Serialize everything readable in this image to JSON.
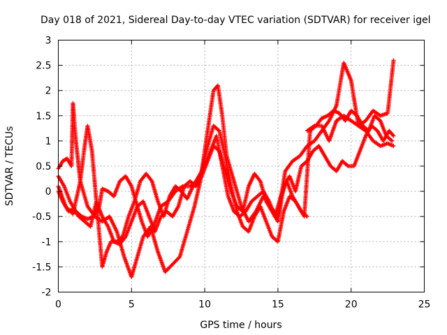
{
  "chart_data": {
    "type": "scatter",
    "title": "Day 018 of 2021, Sidereal Day-to-day VTEC variation (SDTVAR) for receiver igel",
    "xlabel": "GPS time / hours",
    "ylabel": "SDTVAR / TECUs",
    "xlim": [
      0,
      25
    ],
    "ylim": [
      -2,
      3
    ],
    "xticks": [
      0,
      5,
      10,
      15,
      20,
      25
    ],
    "yticks": [
      -2,
      -1.5,
      -1,
      -0.5,
      0,
      0.5,
      1,
      1.5,
      2,
      2.5,
      3
    ],
    "grid": true,
    "marker": "+",
    "series": [
      {
        "name": "SDTVAR",
        "color": "#ff0000",
        "traces": [
          {
            "x": [
              0,
              0.3,
              0.6,
              0.9,
              1.0,
              1.2,
              1.5,
              2.0,
              2.5,
              3.0,
              3.5,
              4.0,
              4.5,
              5.0,
              5.3,
              5.8,
              6.3,
              6.8,
              7.3,
              7.8,
              8.3,
              8.8,
              9.3,
              9.7,
              10.0,
              10.3,
              10.6,
              10.9,
              11.2,
              11.5,
              12.0,
              12.5,
              13.0,
              13.5,
              14.0,
              14.5,
              15.0,
              15.5,
              16.0,
              16.5,
              17.0,
              17.5,
              18.0,
              18.5,
              19.0,
              19.5,
              20.0,
              20.5,
              21.0,
              21.5,
              22.0,
              22.5,
              22.9
            ],
            "y": [
              0.45,
              0.6,
              0.65,
              0.5,
              1.75,
              1.0,
              0.2,
              -0.3,
              -0.5,
              -0.6,
              -0.5,
              -0.8,
              -1.3,
              -1.7,
              -1.4,
              -0.9,
              -0.7,
              -1.2,
              -1.6,
              -1.45,
              -1.3,
              -0.8,
              -0.3,
              0.2,
              0.8,
              1.4,
              2.0,
              2.1,
              1.5,
              0.7,
              0.2,
              -0.3,
              -0.6,
              -0.4,
              -0.1,
              -0.3,
              -0.5,
              0.4,
              0.6,
              0.7,
              0.9,
              1.0,
              1.2,
              1.4,
              1.7,
              2.55,
              2.2,
              1.3,
              1.4,
              1.6,
              1.5,
              1.55,
              2.6
            ]
          },
          {
            "x": [
              0,
              0.4,
              0.8,
              1.2,
              1.6,
              2.0,
              2.4,
              2.8,
              3.0,
              3.4,
              3.8,
              4.2,
              4.6,
              5.0,
              5.3,
              5.7,
              6.1,
              6.5,
              7.0,
              7.5,
              8.0,
              8.5,
              9.0,
              9.5,
              9.8,
              10.2,
              10.6,
              11.0,
              11.4,
              11.8,
              12.2,
              12.6,
              13.0,
              13.4,
              13.8,
              14.2,
              14.6,
              15.0,
              15.4,
              15.8,
              16.2,
              16.6,
              17.0
            ],
            "y": [
              0.3,
              0.1,
              -0.2,
              -0.4,
              -0.5,
              -0.55,
              -0.5,
              -0.3,
              0.05,
              0.0,
              -0.1,
              0.2,
              0.3,
              0.1,
              -0.2,
              -0.6,
              -0.9,
              -0.7,
              -0.3,
              -0.2,
              0.0,
              0.1,
              0.1,
              0.2,
              0.4,
              0.9,
              1.3,
              1.2,
              0.7,
              0.1,
              -0.4,
              -0.7,
              -0.8,
              -0.5,
              -0.3,
              -0.6,
              -0.9,
              -1.0,
              -0.4,
              -0.1,
              -0.2,
              -0.4,
              -0.5
            ]
          },
          {
            "x": [
              0,
              0.5,
              1.0,
              1.5,
              1.8,
              2.0,
              2.3,
              2.6,
              3.0,
              3.4,
              3.8,
              4.2,
              4.6,
              5.0,
              5.4,
              5.8,
              6.2,
              6.6,
              7.0,
              7.4,
              7.8,
              8.2,
              8.6,
              9.0,
              9.4,
              9.8,
              10.2,
              10.6,
              11.0,
              11.4,
              11.8,
              12.2,
              12.6,
              13.0,
              13.4,
              13.8,
              14.2,
              14.6,
              15.0,
              15.4,
              15.8,
              16.2,
              16.6,
              17.0,
              17.4,
              17.8,
              18.2,
              18.6,
              19.0,
              19.4,
              19.8,
              20.2,
              20.6,
              21.0,
              21.4,
              21.8,
              22.2,
              22.6,
              22.9
            ],
            "y": [
              0.1,
              -0.3,
              -0.45,
              0.2,
              0.9,
              1.3,
              0.8,
              -0.2,
              -0.5,
              -0.7,
              -1.0,
              -1.05,
              -0.9,
              -0.6,
              -0.3,
              -0.2,
              -0.5,
              -0.8,
              -0.5,
              -0.4,
              -0.5,
              -0.3,
              0.1,
              0.2,
              0.1,
              0.3,
              0.6,
              0.9,
              0.8,
              0.4,
              0.0,
              -0.3,
              -0.4,
              0.1,
              0.35,
              0.2,
              -0.2,
              -0.4,
              -0.6,
              0.1,
              0.3,
              0.0,
              0.5,
              0.6,
              0.8,
              0.9,
              0.7,
              0.5,
              0.4,
              0.6,
              0.5,
              0.5,
              0.8,
              1.1,
              1.3,
              1.2,
              1.0,
              1.2,
              1.1
            ]
          },
          {
            "x": [
              0,
              0.3,
              0.7,
              1.0,
              1.4,
              1.8,
              2.2,
              2.6,
              3.0,
              3.3,
              3.6,
              4.0,
              4.4,
              4.8,
              5.2,
              5.6,
              6.0,
              6.4,
              6.8,
              7.2,
              7.6,
              8.0,
              8.4,
              8.8,
              9.2,
              9.6,
              10.0,
              10.4,
              10.8,
              11.2,
              11.6,
              12.0,
              12.4,
              12.8,
              13.2,
              13.6,
              14.0,
              14.4,
              14.8,
              15.2,
              15.6,
              16.0,
              16.4,
              16.8,
              17.2,
              17.6,
              18.0,
              18.4,
              18.8,
              19.2,
              19.6,
              20.0,
              20.4,
              20.8,
              21.2,
              21.6,
              22.0,
              22.4,
              22.8
            ],
            "y": [
              0.0,
              -0.2,
              -0.4,
              -0.35,
              -0.5,
              -0.6,
              -0.7,
              -0.2,
              -1.5,
              -1.2,
              -1.0,
              -1.0,
              -0.9,
              -0.5,
              -0.2,
              0.2,
              0.35,
              0.2,
              -0.2,
              -0.5,
              -0.1,
              0.1,
              0.0,
              -0.15,
              0.1,
              0.3,
              0.5,
              0.8,
              1.1,
              0.5,
              -0.1,
              -0.4,
              -0.5,
              -0.4,
              -0.2,
              -0.1,
              0.0,
              -0.2,
              -0.5,
              -0.1,
              0.2,
              -0.1,
              -0.3,
              -0.5,
              1.2,
              1.3,
              1.45,
              1.5,
              1.6,
              1.55,
              1.4,
              1.6,
              1.5,
              1.3,
              1.2,
              1.5,
              1.4,
              1.1,
              1.0
            ]
          },
          {
            "x": [
              17.0,
              17.5,
              18.0,
              18.5,
              19.0,
              19.5,
              20.0,
              20.5,
              21.0,
              21.5,
              22.0,
              22.5,
              22.9
            ],
            "y": [
              1.2,
              1.3,
              1.3,
              1.0,
              1.4,
              1.5,
              1.4,
              1.3,
              1.2,
              1.0,
              0.9,
              0.95,
              0.9
            ]
          }
        ]
      }
    ]
  }
}
